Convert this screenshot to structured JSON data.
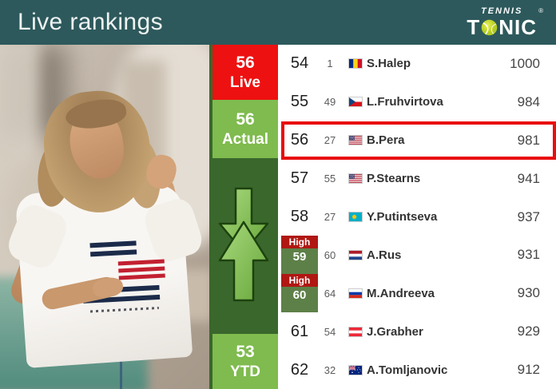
{
  "header": {
    "title": "Live rankings",
    "logo": {
      "top": "TENNIS",
      "t": "T",
      "nic": "NIC",
      "registered": "®",
      "ball_icon": "tennis-ball"
    }
  },
  "summary": {
    "live": {
      "value": "56",
      "label": "Live"
    },
    "actual": {
      "value": "56",
      "label": "Actual"
    },
    "ytd": {
      "value": "53",
      "label": "YTD"
    },
    "movement_icon": "down-up-arrows"
  },
  "table": {
    "rows": [
      {
        "live_rank": "54",
        "official_rank": "1",
        "country": "romania",
        "name": "S.Halep",
        "points": "1000",
        "high": false,
        "highlight": false
      },
      {
        "live_rank": "55",
        "official_rank": "49",
        "country": "czech-republic",
        "name": "L.Fruhvirtova",
        "points": "984",
        "high": false,
        "highlight": false
      },
      {
        "live_rank": "56",
        "official_rank": "27",
        "country": "usa",
        "name": "B.Pera",
        "points": "981",
        "high": false,
        "highlight": true
      },
      {
        "live_rank": "57",
        "official_rank": "55",
        "country": "usa",
        "name": "P.Stearns",
        "points": "941",
        "high": false,
        "highlight": false
      },
      {
        "live_rank": "58",
        "official_rank": "27",
        "country": "kazakhstan",
        "name": "Y.Putintseva",
        "points": "937",
        "high": false,
        "highlight": false
      },
      {
        "live_rank": "59",
        "official_rank": "60",
        "country": "netherlands",
        "name": "A.Rus",
        "points": "931",
        "high": true,
        "high_label": "High",
        "highlight": false
      },
      {
        "live_rank": "60",
        "official_rank": "64",
        "country": "russia",
        "name": "M.Andreeva",
        "points": "930",
        "high": true,
        "high_label": "High",
        "highlight": false
      },
      {
        "live_rank": "61",
        "official_rank": "54",
        "country": "austria",
        "name": "J.Grabher",
        "points": "929",
        "high": false,
        "highlight": false
      },
      {
        "live_rank": "62",
        "official_rank": "32",
        "country": "australia",
        "name": "A.Tomljanovic",
        "points": "912",
        "high": false,
        "highlight": false
      }
    ]
  },
  "colors": {
    "header_background": "#2d595c",
    "live_red": "#ee1111",
    "light_green": "#7fbb4e",
    "dark_green": "#3a672c",
    "high_badge_red": "#b01712",
    "high_cell_green": "#5d8048",
    "highlight_border": "#e80d0d",
    "ball_yellow": "#c3d82e"
  }
}
